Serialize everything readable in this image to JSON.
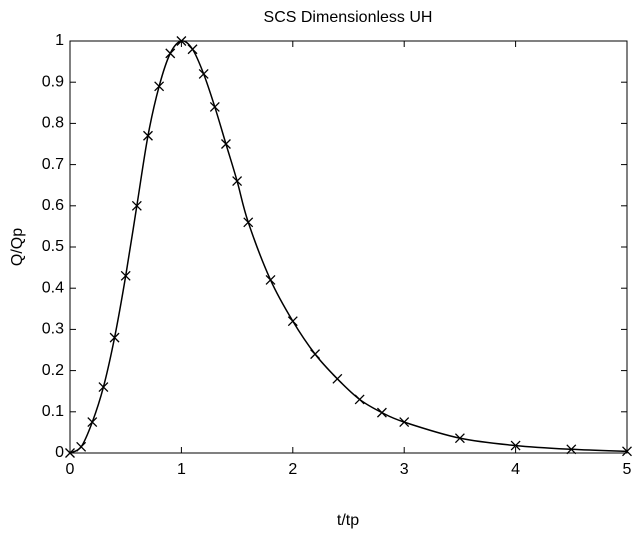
{
  "chart_data": {
    "type": "line",
    "title": "SCS Dimensionless UH",
    "x_label": "t/tp",
    "y_label": "Q/Qp",
    "x": [
      0,
      0.1,
      0.2,
      0.3,
      0.4,
      0.5,
      0.6,
      0.7,
      0.8,
      0.9,
      1.0,
      1.1,
      1.2,
      1.3,
      1.4,
      1.5,
      1.6,
      1.8,
      2.0,
      2.2,
      2.4,
      2.6,
      2.8,
      3.0,
      3.5,
      4.0,
      4.5,
      5.0
    ],
    "series": [
      {
        "color": "#000000",
        "values": [
          0,
          0.015,
          0.075,
          0.16,
          0.28,
          0.43,
          0.6,
          0.77,
          0.89,
          0.97,
          1.0,
          0.98,
          0.92,
          0.84,
          0.75,
          0.66,
          0.56,
          0.42,
          0.32,
          0.24,
          0.18,
          0.13,
          0.098,
          0.075,
          0.036,
          0.018,
          0.009,
          0.004
        ]
      }
    ],
    "xlim": [
      0,
      5
    ],
    "ylim": [
      0,
      1
    ],
    "xticks": [
      0,
      1,
      2,
      3,
      4,
      5
    ],
    "yticks": [
      0,
      0.1,
      0.2,
      0.3,
      0.4,
      0.5,
      0.6,
      0.7,
      0.8,
      0.9,
      1
    ],
    "marker": "x",
    "grid": false
  }
}
